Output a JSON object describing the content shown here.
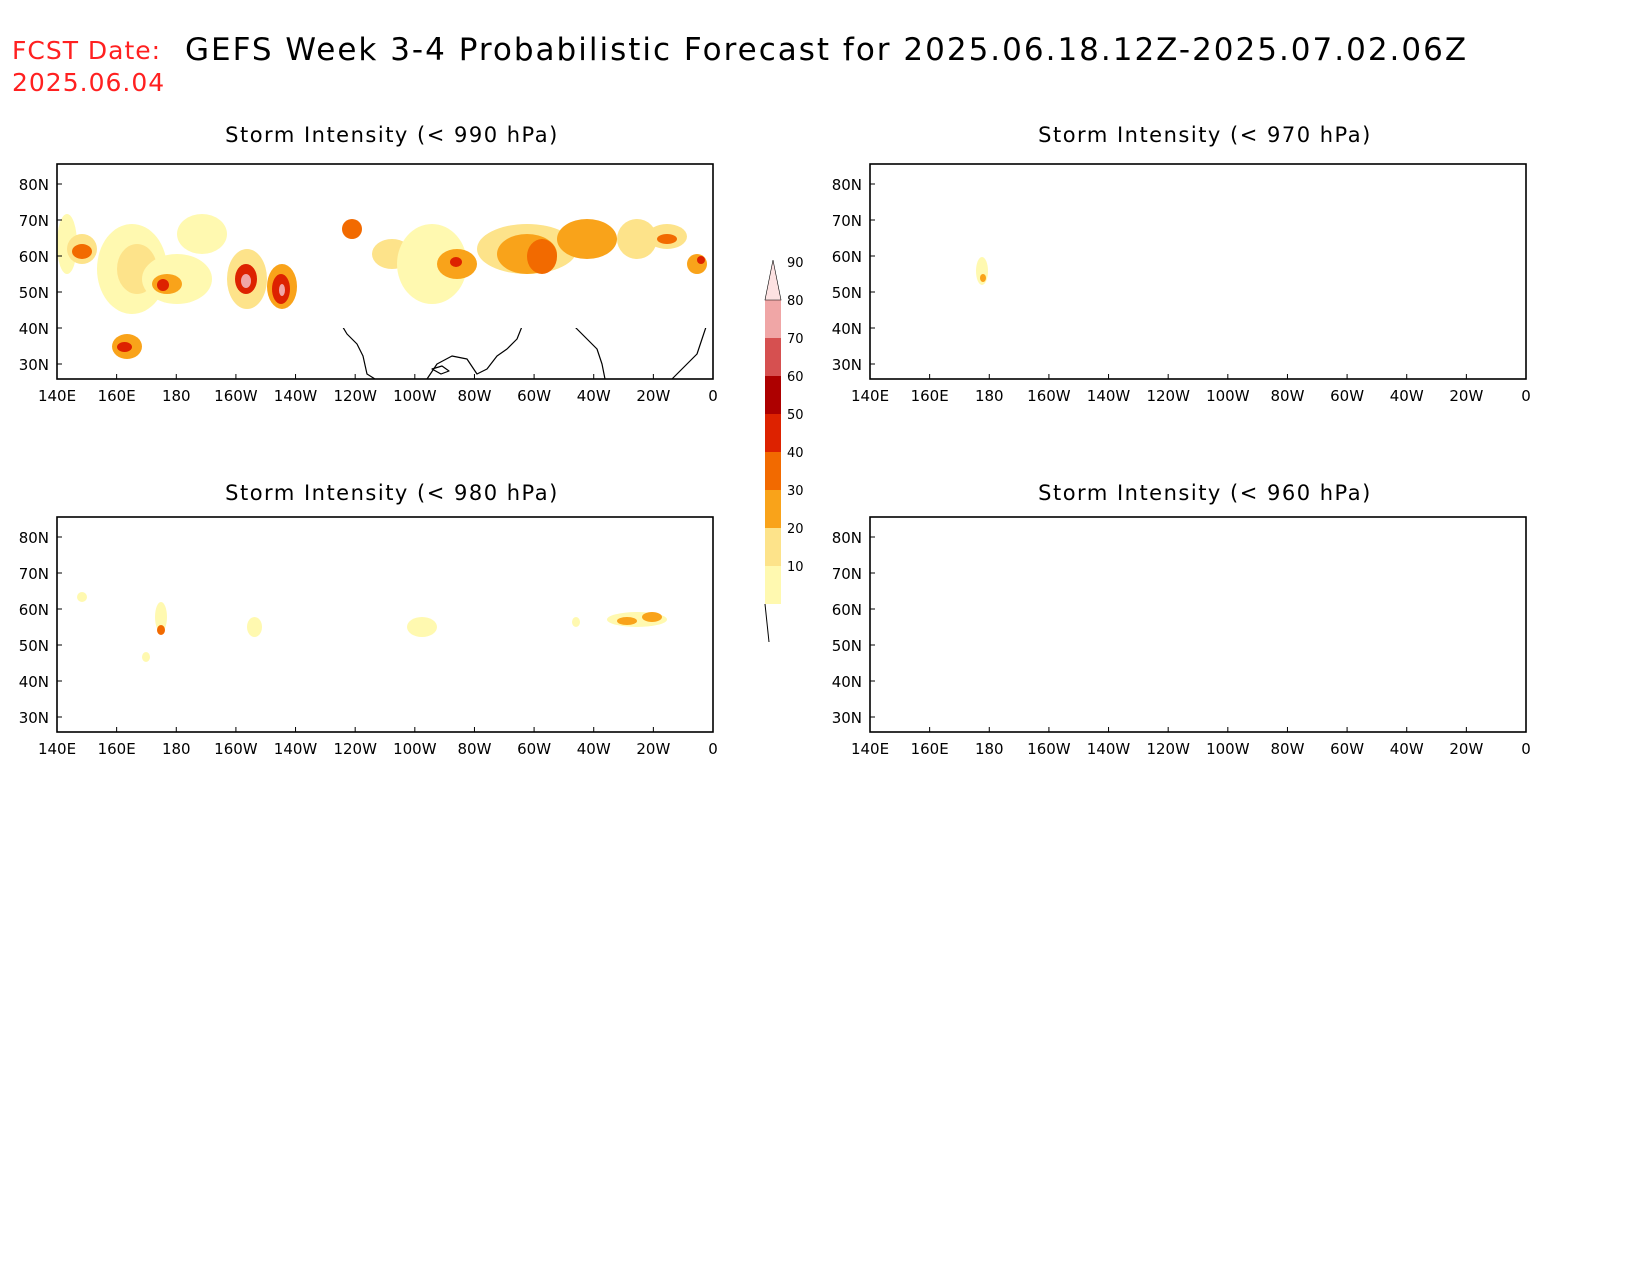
{
  "header": {
    "fcst_label": "FCST Date:",
    "fcst_date": "2025.06.04",
    "title": "GEFS Week 3-4 Probabilistic Forecast for 2025.06.18.12Z-2025.07.02.06Z"
  },
  "panels": [
    {
      "title": "Storm Intensity (< 990 hPa)"
    },
    {
      "title": "Storm Intensity (< 970 hPa)"
    },
    {
      "title": "Storm Intensity (< 980 hPa)"
    },
    {
      "title": "Storm Intensity (< 960 hPa)"
    }
  ],
  "axes": {
    "lon_ticks": [
      "140E",
      "160E",
      "180",
      "160W",
      "140W",
      "120W",
      "100W",
      "80W",
      "60W",
      "40W",
      "20W",
      "0"
    ],
    "lat_ticks": [
      "80N",
      "70N",
      "60N",
      "50N",
      "40N",
      "30N"
    ]
  },
  "colorbar": {
    "labels": [
      "10",
      "20",
      "30",
      "40",
      "50",
      "60",
      "70",
      "80",
      "90"
    ],
    "colors": [
      "#fff9b0",
      "#fde38a",
      "#f9a31a",
      "#f26a00",
      "#dd2200",
      "#ad0000",
      "#d65050",
      "#f0a6a6",
      "#fde2e2"
    ]
  }
}
